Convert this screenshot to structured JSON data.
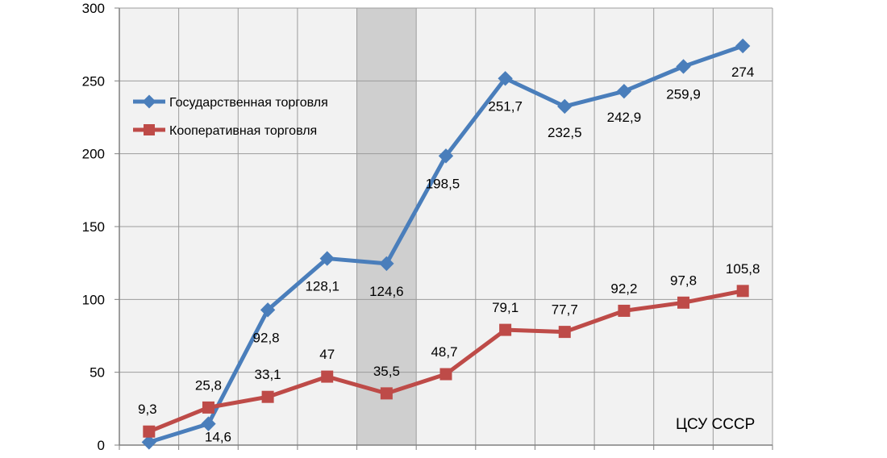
{
  "chart_data": {
    "type": "line",
    "source_note": "ЦСУ СССР",
    "ylim": [
      0,
      300
    ],
    "yticks": [
      0,
      50,
      100,
      150,
      200,
      250,
      300
    ],
    "x_count": 11,
    "highlight_index": 4,
    "grid": true,
    "legend_position": "top-left",
    "series": [
      {
        "name": "Государственная торговля",
        "color": "#4a7ebb",
        "marker": "diamond",
        "values": [
          2,
          14.6,
          92.8,
          128.1,
          124.6,
          198.5,
          251.7,
          232.5,
          242.9,
          259.9,
          274
        ],
        "labels": [
          "",
          "14,6",
          "92,8",
          "128,1",
          "124,6",
          "198,5",
          "251,7",
          "232,5",
          "242,9",
          "259,9",
          "274"
        ]
      },
      {
        "name": "Кооперативная торговля",
        "color": "#be4b48",
        "marker": "square",
        "values": [
          9.3,
          25.8,
          33.1,
          47,
          35.5,
          48.7,
          79.1,
          77.7,
          92.2,
          97.8,
          105.8
        ],
        "labels": [
          "9,3",
          "25,8",
          "33,1",
          "47",
          "35,5",
          "48,7",
          "79,1",
          "77,7",
          "92,2",
          "97,8",
          "105,8"
        ]
      }
    ]
  }
}
